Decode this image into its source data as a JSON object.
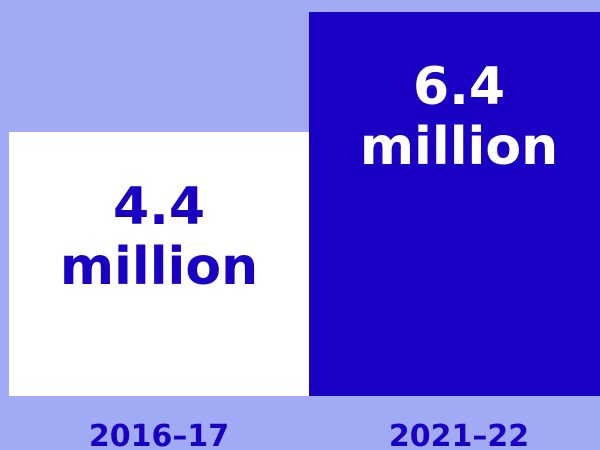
{
  "chart_data": {
    "type": "bar",
    "categories": [
      "2016–17",
      "2021–22"
    ],
    "values": [
      4.4,
      6.4
    ],
    "value_labels": [
      [
        "4.4",
        "million"
      ],
      [
        "6.4",
        "million"
      ]
    ],
    "unit": "million",
    "ylim": [
      0,
      6.4
    ]
  },
  "colors": {
    "background": "#a1abf5",
    "bar_fills": [
      "#ffffff",
      "#1a00c2"
    ],
    "label_colors": [
      "#1a00c2",
      "#ffffff"
    ],
    "tick_color": "#1a00c2"
  }
}
